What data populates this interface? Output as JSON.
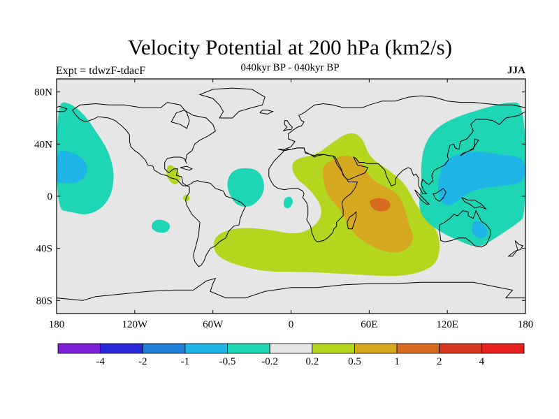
{
  "chart_data": {
    "type": "heatmap",
    "title": "Velocity Potential at 200 hPa (km2/s)",
    "subtitle": "040kyr BP - 040kyr BP",
    "left_label": "Expt = tdwzF-tdacF",
    "right_label": "JJA",
    "x_ticks": [
      {
        "lon": -180,
        "label": "180"
      },
      {
        "lon": -120,
        "label": "120W"
      },
      {
        "lon": -60,
        "label": "60W"
      },
      {
        "lon": 0,
        "label": "0"
      },
      {
        "lon": 60,
        "label": "60E"
      },
      {
        "lon": 120,
        "label": "120E"
      },
      {
        "lon": 180,
        "label": "180"
      }
    ],
    "y_ticks": [
      {
        "lat": 80,
        "label": "80N"
      },
      {
        "lat": 40,
        "label": "40N"
      },
      {
        "lat": 0,
        "label": "0"
      },
      {
        "lat": -40,
        "label": "40S"
      },
      {
        "lat": -80,
        "label": "80S"
      }
    ],
    "xlim": [
      -180,
      180
    ],
    "ylim": [
      -90,
      90
    ],
    "colorbar": {
      "colors": [
        "#7c1fd6",
        "#2a2ad6",
        "#1f7fd6",
        "#1fb4e6",
        "#1fd6b4",
        "#e6e6e6",
        "#b4d61f",
        "#d6a81f",
        "#d66a1f",
        "#d6381f",
        "#e61f1f"
      ],
      "labels": [
        "-4",
        "-2",
        "-1",
        "-0.5",
        "-0.2",
        "0.2",
        "0.5",
        "1",
        "2",
        "4"
      ]
    },
    "regions": [
      {
        "level": "0.2 to 0.5",
        "points": [
          [
            20,
            32
          ],
          [
            30,
            40
          ],
          [
            45,
            50
          ],
          [
            55,
            45
          ],
          [
            60,
            30
          ],
          [
            75,
            20
          ],
          [
            85,
            12
          ],
          [
            90,
            5
          ],
          [
            98,
            -10
          ],
          [
            112,
            -25
          ],
          [
            115,
            -40
          ],
          [
            110,
            -55
          ],
          [
            85,
            -62
          ],
          [
            50,
            -60
          ],
          [
            10,
            -58
          ],
          [
            -20,
            -58
          ],
          [
            -45,
            -52
          ],
          [
            -58,
            -45
          ],
          [
            -60,
            -35
          ],
          [
            -55,
            -28
          ],
          [
            -40,
            -24
          ],
          [
            -20,
            -25
          ],
          [
            5,
            -30
          ],
          [
            20,
            -22
          ],
          [
            25,
            -10
          ],
          [
            15,
            5
          ],
          [
            2,
            15
          ],
          [
            0,
            28
          ]
        ]
      },
      {
        "level": "0.2 to 0.5",
        "points": [
          [
            -95,
            25
          ],
          [
            -88,
            22
          ],
          [
            -84,
            12
          ],
          [
            -90,
            8
          ],
          [
            -96,
            15
          ]
        ]
      },
      {
        "level": "0.2 to 0.5",
        "points": [
          [
            -84,
            -1
          ],
          [
            -80,
            2
          ],
          [
            -77,
            -1
          ],
          [
            -80,
            -5
          ]
        ]
      },
      {
        "level": "0.5 to 1",
        "points": [
          [
            25,
            25
          ],
          [
            40,
            32
          ],
          [
            48,
            30
          ],
          [
            55,
            25
          ],
          [
            60,
            15
          ],
          [
            70,
            8
          ],
          [
            78,
            5
          ],
          [
            85,
            -2
          ],
          [
            90,
            -20
          ],
          [
            95,
            -33
          ],
          [
            88,
            -42
          ],
          [
            75,
            -44
          ],
          [
            55,
            -35
          ],
          [
            45,
            -25
          ],
          [
            38,
            -10
          ],
          [
            28,
            0
          ],
          [
            24,
            15
          ]
        ]
      },
      {
        "level": "1 to 2",
        "points": [
          [
            60,
            -3
          ],
          [
            68,
            -1
          ],
          [
            75,
            -3
          ],
          [
            77,
            -8
          ],
          [
            72,
            -12
          ],
          [
            64,
            -11
          ],
          [
            61,
            -7
          ]
        ]
      },
      {
        "level": "-0.5 to -0.2",
        "points": [
          [
            -180,
            72
          ],
          [
            -170,
            72
          ],
          [
            -158,
            62
          ],
          [
            -150,
            50
          ],
          [
            -140,
            35
          ],
          [
            -135,
            15
          ],
          [
            -140,
            -5
          ],
          [
            -155,
            -15
          ],
          [
            -170,
            -12
          ],
          [
            -180,
            -10
          ]
        ]
      },
      {
        "level": "-0.5 to -0.2",
        "points": [
          [
            -45,
            20
          ],
          [
            -35,
            22
          ],
          [
            -25,
            20
          ],
          [
            -20,
            10
          ],
          [
            -22,
            0
          ],
          [
            -30,
            -8
          ],
          [
            -40,
            -8
          ],
          [
            -46,
            -2
          ],
          [
            -50,
            10
          ]
        ]
      },
      {
        "level": "-0.5 to -0.2",
        "points": [
          [
            -105,
            -18
          ],
          [
            -98,
            -18
          ],
          [
            -92,
            -22
          ],
          [
            -95,
            -28
          ],
          [
            -103,
            -28
          ],
          [
            -108,
            -24
          ]
        ]
      },
      {
        "level": "-0.5 to -0.2",
        "points": [
          [
            -5,
            -1
          ],
          [
            0,
            0
          ],
          [
            2,
            -5
          ],
          [
            -2,
            -10
          ],
          [
            -6,
            -8
          ]
        ]
      },
      {
        "level": "-0.5 to -0.2",
        "points": [
          [
            180,
            72
          ],
          [
            165,
            72
          ],
          [
            150,
            68
          ],
          [
            130,
            62
          ],
          [
            115,
            55
          ],
          [
            105,
            45
          ],
          [
            100,
            30
          ],
          [
            100,
            10
          ],
          [
            98,
            -5
          ],
          [
            100,
            -15
          ],
          [
            110,
            -25
          ],
          [
            130,
            -35
          ],
          [
            145,
            -40
          ],
          [
            160,
            -30
          ],
          [
            175,
            -20
          ],
          [
            180,
            -15
          ]
        ]
      },
      {
        "level": "-1 to -0.5",
        "points": [
          [
            -180,
            35
          ],
          [
            -172,
            35
          ],
          [
            -160,
            30
          ],
          [
            -155,
            20
          ],
          [
            -162,
            10
          ],
          [
            -178,
            10
          ],
          [
            -180,
            12
          ]
        ]
      },
      {
        "level": "-1 to -0.5",
        "points": [
          [
            120,
            30
          ],
          [
            140,
            35
          ],
          [
            160,
            32
          ],
          [
            180,
            30
          ],
          [
            180,
            10
          ],
          [
            160,
            8
          ],
          [
            140,
            5
          ],
          [
            130,
            -2
          ],
          [
            122,
            -8
          ],
          [
            115,
            -5
          ],
          [
            112,
            8
          ],
          [
            115,
            20
          ]
        ]
      },
      {
        "level": "-1 to -0.5",
        "points": [
          [
            140,
            -18
          ],
          [
            148,
            -20
          ],
          [
            152,
            -30
          ],
          [
            145,
            -33
          ],
          [
            138,
            -28
          ]
        ]
      }
    ]
  }
}
